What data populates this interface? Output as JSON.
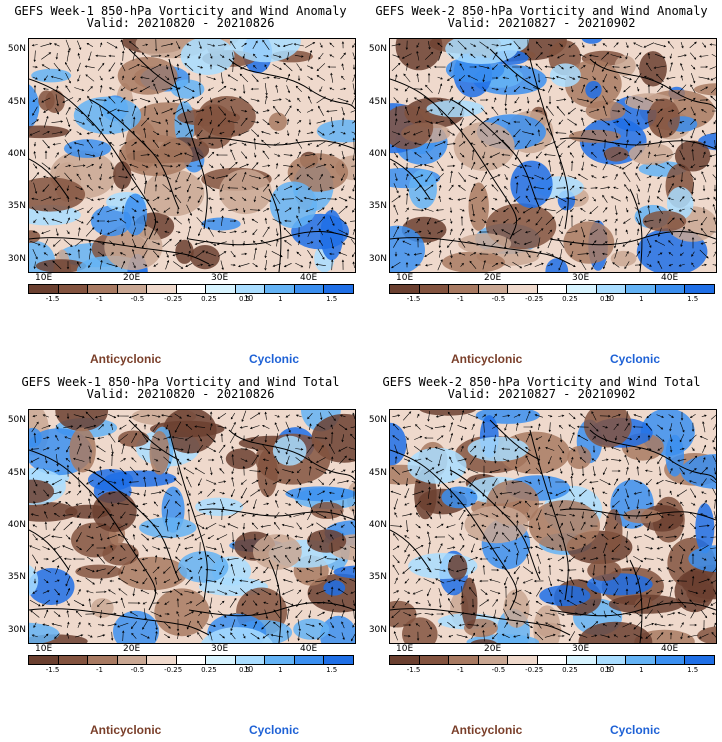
{
  "panels": [
    {
      "line1": "GEFS Week-1 850-hPa Vorticity and Wind Anomaly",
      "line2": "Valid: 20210820 - 20210826"
    },
    {
      "line1": "GEFS Week-2 850-hPa Vorticity and Wind Anomaly",
      "line2": "Valid: 20210827 - 20210902"
    },
    {
      "line1": "GEFS Week-1 850-hPa Vorticity and Wind Total",
      "line2": "Valid: 20210820 - 20210826"
    },
    {
      "line1": "GEFS Week-2 850-hPa Vorticity and Wind Total",
      "line2": "Valid: 20210827 - 20210902"
    }
  ],
  "lat_labels": [
    "50N",
    "45N",
    "40N",
    "35N",
    "30N"
  ],
  "lon_labels": [
    "10E",
    "20E",
    "30E",
    "40E"
  ],
  "colorbar": {
    "labels": [
      "-1.5",
      "-1",
      "-0.5",
      "-0.25",
      "0.25",
      "0.5",
      "1",
      "1.5"
    ],
    "unit_label": "10",
    "colors": [
      "#6b4030",
      "#83533f",
      "#a87a62",
      "#c9a793",
      "#efd9cc",
      "#ffffff",
      "#d8f4ff",
      "#a9ddff",
      "#64b3f5",
      "#3b8ff0",
      "#1f6fe6"
    ]
  },
  "legend": {
    "anticyclonic": "Anticyclonic",
    "cyclonic": "Cyclonic"
  }
}
